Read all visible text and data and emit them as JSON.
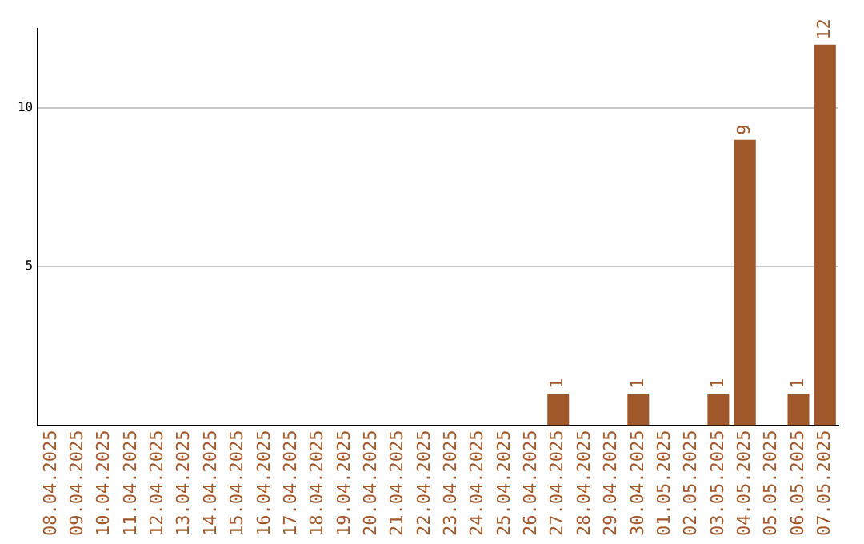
{
  "chart_data": {
    "type": "bar",
    "categories": [
      "08.04.2025",
      "09.04.2025",
      "10.04.2025",
      "11.04.2025",
      "12.04.2025",
      "13.04.2025",
      "14.04.2025",
      "15.04.2025",
      "16.04.2025",
      "17.04.2025",
      "18.04.2025",
      "19.04.2025",
      "20.04.2025",
      "21.04.2025",
      "22.04.2025",
      "23.04.2025",
      "24.04.2025",
      "25.04.2025",
      "26.04.2025",
      "27.04.2025",
      "28.04.2025",
      "29.04.2025",
      "30.04.2025",
      "01.05.2025",
      "02.05.2025",
      "03.05.2025",
      "04.05.2025",
      "05.05.2025",
      "06.05.2025",
      "07.05.2025"
    ],
    "values": [
      0,
      0,
      0,
      0,
      0,
      0,
      0,
      0,
      0,
      0,
      0,
      0,
      0,
      0,
      0,
      0,
      0,
      0,
      0,
      1,
      0,
      0,
      1,
      0,
      0,
      1,
      9,
      0,
      1,
      12
    ],
    "value_labels": [
      null,
      null,
      null,
      null,
      null,
      null,
      null,
      null,
      null,
      null,
      null,
      null,
      null,
      null,
      null,
      null,
      null,
      null,
      null,
      "1",
      null,
      null,
      "1",
      null,
      null,
      "1",
      "9",
      null,
      "1",
      "12"
    ],
    "color": "#a0582a",
    "ylim": [
      0,
      12.5
    ],
    "yticks": [
      5,
      10
    ],
    "grid": "y",
    "legend": false
  }
}
